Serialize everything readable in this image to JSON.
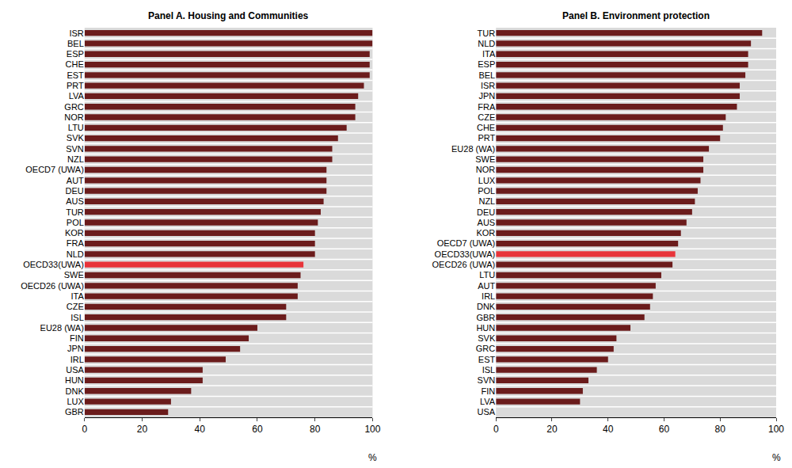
{
  "chart_data": [
    {
      "type": "bar",
      "title": "Panel A. Housing and Communities",
      "orientation": "horizontal",
      "categories": [
        "ISR",
        "BEL",
        "ESP",
        "CHE",
        "EST",
        "PRT",
        "LVA",
        "GRC",
        "NOR",
        "LTU",
        "SVK",
        "SVN",
        "NZL",
        "OECD7 (UWA)",
        "AUT",
        "DEU",
        "AUS",
        "TUR",
        "POL",
        "KOR",
        "FRA",
        "NLD",
        "OECD33(UWA)",
        "SWE",
        "OECD26 (UWA)",
        "ITA",
        "CZE",
        "ISL",
        "EU28 (WA)",
        "FIN",
        "JPN",
        "IRL",
        "USA",
        "HUN",
        "DNK",
        "LUX",
        "GBR"
      ],
      "values": [
        100,
        100,
        99,
        99,
        99,
        97,
        95,
        94,
        94,
        91,
        88,
        86,
        86,
        84,
        84,
        84,
        83,
        82,
        81,
        80,
        80,
        80,
        76,
        75,
        74,
        74,
        70,
        70,
        60,
        57,
        54,
        49,
        41,
        41,
        37,
        30,
        29
      ],
      "colors": [
        "#6b1c1c",
        "#6b1c1c",
        "#6b1c1c",
        "#6b1c1c",
        "#6b1c1c",
        "#6b1c1c",
        "#6b1c1c",
        "#6b1c1c",
        "#6b1c1c",
        "#6b1c1c",
        "#6b1c1c",
        "#6b1c1c",
        "#6b1c1c",
        "#6b1c1c",
        "#6b1c1c",
        "#6b1c1c",
        "#6b1c1c",
        "#6b1c1c",
        "#6b1c1c",
        "#6b1c1c",
        "#6b1c1c",
        "#6b1c1c",
        "#e8343a",
        "#6b1c1c",
        "#6b1c1c",
        "#6b1c1c",
        "#6b1c1c",
        "#6b1c1c",
        "#6b1c1c",
        "#6b1c1c",
        "#6b1c1c",
        "#6b1c1c",
        "#6b1c1c",
        "#6b1c1c",
        "#6b1c1c",
        "#6b1c1c",
        "#6b1c1c"
      ],
      "xlim": [
        0,
        100
      ],
      "xticks": [
        0,
        20,
        40,
        60,
        80,
        100
      ],
      "xlabel": "%",
      "grid": false
    },
    {
      "type": "bar",
      "title": "Panel B. Environment protection",
      "orientation": "horizontal",
      "categories": [
        "TUR",
        "NLD",
        "ITA",
        "ESP",
        "BEL",
        "ISR",
        "JPN",
        "FRA",
        "CZE",
        "CHE",
        "PRT",
        "EU28 (WA)",
        "SWE",
        "NOR",
        "LUX",
        "POL",
        "NZL",
        "DEU",
        "AUS",
        "KOR",
        "OECD7 (UWA)",
        "OECD33(UWA)",
        "OECD26 (UWA)",
        "LTU",
        "AUT",
        "IRL",
        "DNK",
        "GBR",
        "HUN",
        "SVK",
        "GRC",
        "EST",
        "ISL",
        "SVN",
        "FIN",
        "LVA",
        "USA"
      ],
      "values": [
        95,
        91,
        90,
        90,
        89,
        87,
        87,
        86,
        82,
        81,
        80,
        76,
        74,
        74,
        73,
        72,
        71,
        70,
        68,
        66,
        65,
        64,
        63,
        59,
        57,
        56,
        55,
        53,
        48,
        43,
        42,
        40,
        36,
        33,
        31,
        30,
        null
      ],
      "colors": [
        "#6b1c1c",
        "#6b1c1c",
        "#6b1c1c",
        "#6b1c1c",
        "#6b1c1c",
        "#6b1c1c",
        "#6b1c1c",
        "#6b1c1c",
        "#6b1c1c",
        "#6b1c1c",
        "#6b1c1c",
        "#6b1c1c",
        "#6b1c1c",
        "#6b1c1c",
        "#6b1c1c",
        "#6b1c1c",
        "#6b1c1c",
        "#6b1c1c",
        "#6b1c1c",
        "#6b1c1c",
        "#6b1c1c",
        "#e8343a",
        "#6b1c1c",
        "#6b1c1c",
        "#6b1c1c",
        "#6b1c1c",
        "#6b1c1c",
        "#6b1c1c",
        "#6b1c1c",
        "#6b1c1c",
        "#6b1c1c",
        "#6b1c1c",
        "#6b1c1c",
        "#6b1c1c",
        "#6b1c1c",
        "#6b1c1c",
        "#6b1c1c"
      ],
      "xlim": [
        0,
        100
      ],
      "xticks": [
        0,
        20,
        40,
        60,
        80,
        100
      ],
      "xlabel": "%",
      "grid": false
    }
  ]
}
